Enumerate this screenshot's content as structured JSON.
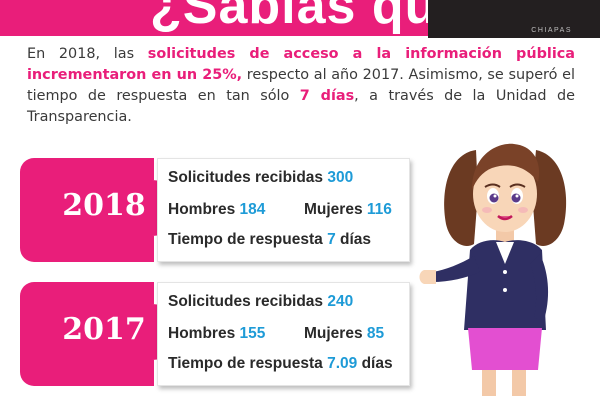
{
  "banner": {
    "title": "¿Sabías que?",
    "logo_text": "CHIAPAS"
  },
  "intro": {
    "part1": "En 2018, las ",
    "highlight1": "solicitudes de acceso a la información pública incrementaron en un 25%,",
    "part2": " respecto al año 2017. Asimismo, se superó el tiempo de respuesta en tan sólo ",
    "highlight2": "7 días",
    "part3": ", a través de la Unidad de Transparencia."
  },
  "stats": [
    {
      "year": "2018",
      "solicitudes_label": "Solicitudes recibidas",
      "solicitudes_value": "300",
      "hombres_label": "Hombres",
      "hombres_value": "184",
      "mujeres_label": "Mujeres",
      "mujeres_value": "116",
      "tiempo_label": "Tiempo de respuesta",
      "tiempo_value": "7",
      "tiempo_unit": "días"
    },
    {
      "year": "2017",
      "solicitudes_label": "Solicitudes recibidas",
      "solicitudes_value": "240",
      "hombres_label": "Hombres",
      "hombres_value": "155",
      "mujeres_label": "Mujeres",
      "mujeres_value": "85",
      "tiempo_label": "Tiempo de respuesta",
      "tiempo_value": "7.09",
      "tiempo_unit": "días"
    }
  ],
  "colors": {
    "accent": "#e91e7a",
    "number": "#1e9bd7",
    "logo_bg": "#231f20"
  }
}
